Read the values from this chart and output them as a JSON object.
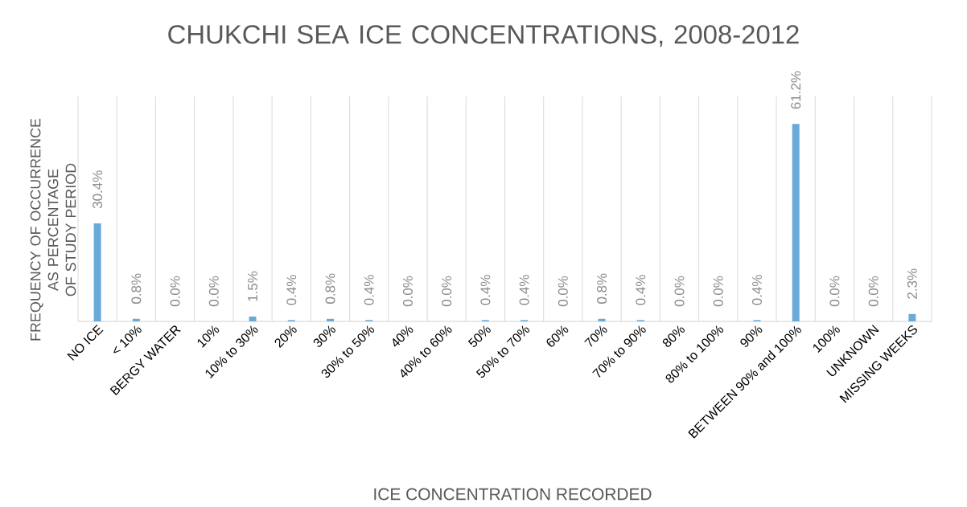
{
  "chart_data": {
    "type": "bar",
    "title": "CHUKCHI SEA ICE CONCENTRATIONS, 2008-2012",
    "xlabel": "ICE CONCENTRATION RECORDED",
    "ylabel": "FREQUENCY OF OCCURRENCE AS PERCENTAGE OF STUDY PERIOD",
    "categories": [
      "NO ICE",
      "< 10%",
      "BERGY WATER",
      "10%",
      "10% to 30%",
      "20%",
      "30%",
      "30% to 50%",
      "40%",
      "40% to 60%",
      "50%",
      "50% to 70%",
      "60%",
      "70%",
      "70% to 90%",
      "80%",
      "80% to 100%",
      "90%",
      "BETWEEN 90% and 100%",
      "100%",
      "UNKNOWN",
      "MISSING WEEKS"
    ],
    "values": [
      30.4,
      0.8,
      0.0,
      0.0,
      1.5,
      0.4,
      0.8,
      0.4,
      0.0,
      0.0,
      0.4,
      0.4,
      0.0,
      0.8,
      0.4,
      0.0,
      0.0,
      0.4,
      61.2,
      0.0,
      0.0,
      2.3
    ],
    "value_labels": [
      "30.4%",
      "0.8%",
      "0.0%",
      "0.0%",
      "1.5%",
      "0.4%",
      "0.8%",
      "0.4%",
      "0.0%",
      "0.0%",
      "0.4%",
      "0.4%",
      "0.0%",
      "0.8%",
      "0.4%",
      "0.0%",
      "0.0%",
      "0.4%",
      "61.2%",
      "0.0%",
      "0.0%",
      "2.3%"
    ],
    "color": "#6aaad9",
    "grid": "x"
  }
}
